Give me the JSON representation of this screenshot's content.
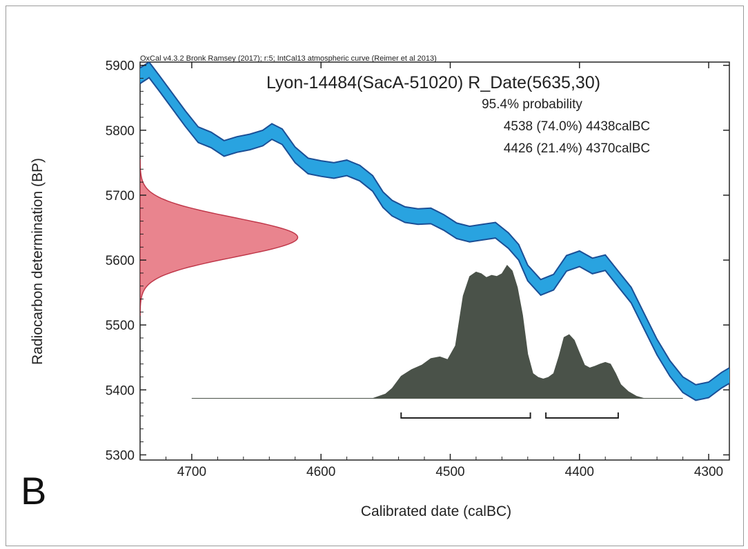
{
  "figure": {
    "panel_label": "B",
    "colors": {
      "calibration_fill": "#29a3e0",
      "calibration_stroke": "#1b4f96",
      "radiocarbon_fill": "#e9848e",
      "radiocarbon_stroke": "#c0384a",
      "posterior_fill": "#4a5249",
      "range_bar": "#222222",
      "axis": "#222222"
    }
  },
  "chart_data": {
    "type": "area",
    "header": "OxCal v4.3.2 Bronk Ramsey (2017); r:5; IntCal13 atmospheric curve (Reimer et al 2013)",
    "title": "Lyon-14484(SacA-51020) R_Date(5635,30)",
    "probability_heading": "95.4% probability",
    "ranges_text": [
      "4538 (74.0%) 4438calBC",
      "4426 (21.4%) 4370calBC"
    ],
    "xlabel": "Calibrated date (calBC)",
    "ylabel": "Radiocarbon determination (BP)",
    "xlim": [
      4740,
      4284
    ],
    "ylim": [
      5292,
      5905
    ],
    "x_ticks": [
      4700,
      4600,
      4500,
      4400,
      4300
    ],
    "x_tick_labels": [
      "4700",
      "4600",
      "4500",
      "4400",
      "4300"
    ],
    "y_ticks": [
      5300,
      5400,
      5500,
      5600,
      5700,
      5800,
      5900
    ],
    "y_tick_labels": [
      "5300",
      "5400",
      "5500",
      "5600",
      "5700",
      "5800",
      "5900"
    ],
    "calibration_curve": {
      "x": [
        4740,
        4733,
        4725,
        4715,
        4705,
        4695,
        4685,
        4675,
        4665,
        4655,
        4645,
        4638,
        4630,
        4620,
        4610,
        4600,
        4590,
        4580,
        4570,
        4560,
        4552,
        4545,
        4535,
        4525,
        4515,
        4505,
        4495,
        4485,
        4475,
        4465,
        4455,
        4447,
        4440,
        4430,
        4420,
        4410,
        4400,
        4390,
        4380,
        4370,
        4360,
        4350,
        4340,
        4330,
        4320,
        4310,
        4300,
        4290,
        4284
      ],
      "y": [
        5884,
        5893,
        5872,
        5845,
        5818,
        5793,
        5785,
        5772,
        5778,
        5782,
        5788,
        5798,
        5790,
        5762,
        5745,
        5741,
        5738,
        5742,
        5734,
        5718,
        5693,
        5680,
        5670,
        5667,
        5668,
        5658,
        5645,
        5640,
        5643,
        5646,
        5630,
        5612,
        5580,
        5558,
        5566,
        5595,
        5602,
        5591,
        5596,
        5571,
        5546,
        5506,
        5466,
        5433,
        5408,
        5396,
        5400,
        5415,
        5422
      ],
      "error": 12
    },
    "radiocarbon_distribution": {
      "mean": 5635,
      "sigma": 30,
      "peak_date": 4618
    },
    "posterior_distribution": {
      "x": [
        4700,
        4560,
        4550,
        4545,
        4538,
        4530,
        4522,
        4515,
        4508,
        4502,
        4496,
        4490,
        4485,
        4480,
        4476,
        4472,
        4468,
        4464,
        4460,
        4456,
        4452,
        4448,
        4444,
        4440,
        4436,
        4432,
        4428,
        4424,
        4420,
        4416,
        4412,
        4408,
        4404,
        4400,
        4396,
        4392,
        4388,
        4384,
        4380,
        4376,
        4372,
        4368,
        4362,
        4356,
        4350,
        4320
      ],
      "y": [
        0,
        0,
        8,
        18,
        40,
        52,
        60,
        72,
        75,
        70,
        95,
        185,
        220,
        228,
        225,
        218,
        222,
        220,
        225,
        240,
        230,
        200,
        150,
        80,
        45,
        38,
        35,
        38,
        45,
        75,
        110,
        115,
        105,
        82,
        60,
        55,
        58,
        62,
        65,
        62,
        45,
        25,
        12,
        4,
        0,
        0
      ],
      "peak": 240
    },
    "hpd_ranges": [
      {
        "from": 4538,
        "to": 4438,
        "percent": 74.0
      },
      {
        "from": 4426,
        "to": 4370,
        "percent": 21.4
      }
    ]
  }
}
